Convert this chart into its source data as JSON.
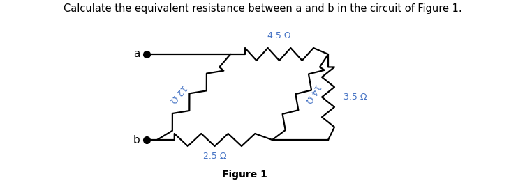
{
  "title": "Calculate the equivalent resistance between a and b in the circuit of Figure 1.",
  "figure_label": "Figure 1",
  "title_fontsize": 10.5,
  "bg_color": "#ffffff",
  "wire_color": "#000000",
  "resistor_color": "#000000",
  "label_color": "#4472C4",
  "node_color": "#000000",
  "labels": {
    "R1": "4.5 Ω",
    "R2": "12 Ω",
    "R3": "14 Ω",
    "R4": "3.5 Ω",
    "R5": "2.5 Ω"
  },
  "nodes": {
    "xa": 2.1,
    "ya": 1.85,
    "xb": 2.1,
    "yb": 0.62,
    "xt": 3.3,
    "yt": 1.85,
    "xtr": 4.7,
    "ytr": 1.85,
    "xbm": 3.9,
    "ybm": 0.62,
    "xbr": 4.7,
    "ybr": 0.62
  }
}
